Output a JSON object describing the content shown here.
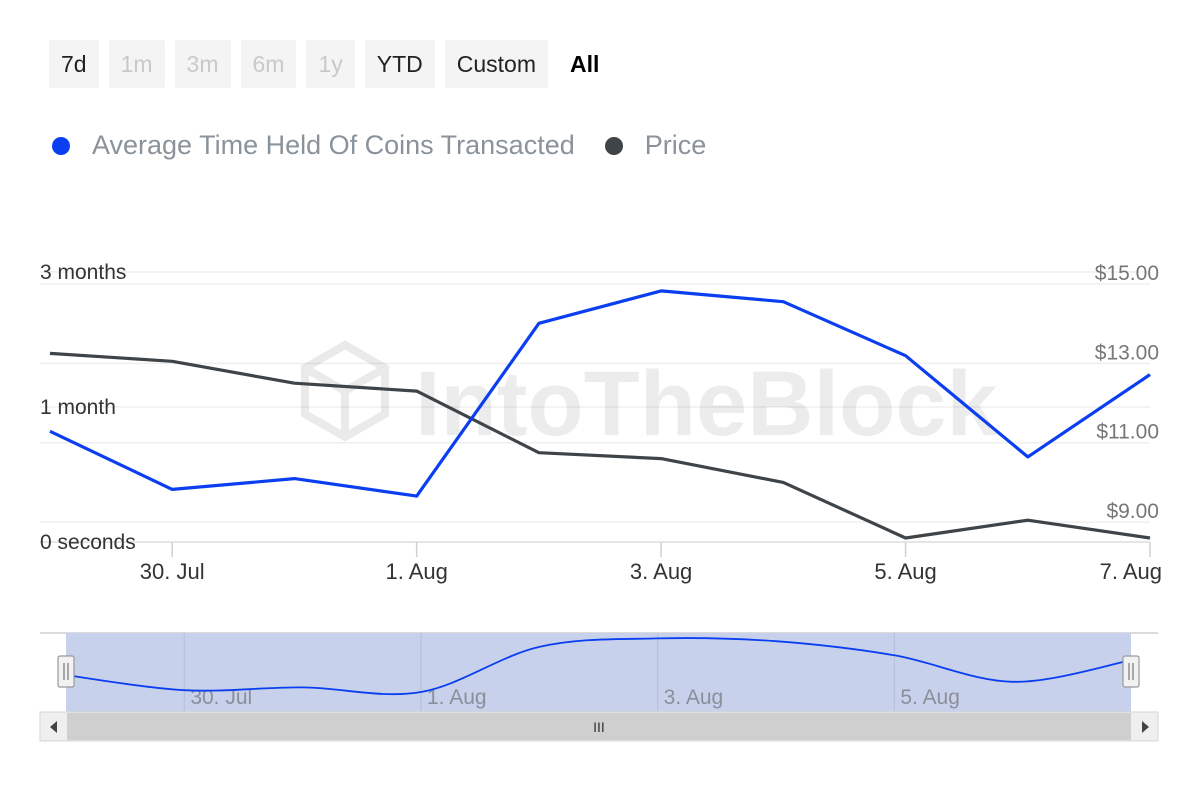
{
  "range_selector": {
    "buttons": [
      {
        "label": "7d",
        "state": "normal"
      },
      {
        "label": "1m",
        "state": "disabled"
      },
      {
        "label": "3m",
        "state": "disabled"
      },
      {
        "label": "6m",
        "state": "disabled"
      },
      {
        "label": "1y",
        "state": "disabled"
      },
      {
        "label": "YTD",
        "state": "normal"
      },
      {
        "label": "Custom",
        "state": "normal"
      },
      {
        "label": "All",
        "state": "active"
      }
    ]
  },
  "watermark": "IntoTheBlock",
  "colors": {
    "series_time_held": "#0a3ef0",
    "series_price": "#3f4448",
    "navigator_fill": "#c8d1ec",
    "grid": "#efefef"
  },
  "chart_data": {
    "type": "line",
    "x": [
      "2024-07-29",
      "2024-07-30",
      "2024-07-31",
      "2024-08-01",
      "2024-08-02",
      "2024-08-03",
      "2024-08-04",
      "2024-08-05",
      "2024-08-06",
      "2024-08-07"
    ],
    "series": [
      {
        "name": "Average Time Held Of Coins Transacted",
        "axis": "left",
        "color": "#0a3ef0",
        "values": [
          0.82,
          0.39,
          0.47,
          0.34,
          1.62,
          1.86,
          1.78,
          1.38,
          0.63,
          1.24
        ]
      },
      {
        "name": "Price",
        "axis": "right",
        "color": "#3f4448",
        "values": [
          13.25,
          13.05,
          12.5,
          12.3,
          10.75,
          10.6,
          10.0,
          8.6,
          9.05,
          8.6
        ]
      }
    ],
    "x_ticks": [
      "30. Jul",
      "1. Aug",
      "3. Aug",
      "5. Aug",
      "7. Aug"
    ],
    "x_tick_dates": [
      "2024-07-30",
      "2024-08-01",
      "2024-08-03",
      "2024-08-05",
      "2024-08-07"
    ],
    "left_axis": {
      "ticks": [
        {
          "label": "0 seconds",
          "value": 0
        },
        {
          "label": "1 month",
          "value": 1
        },
        {
          "label": "3 months",
          "value": 2
        }
      ],
      "ylim": [
        0,
        2.0
      ]
    },
    "right_axis": {
      "ticks": [
        {
          "label": "$9.00",
          "value": 9
        },
        {
          "label": "$11.00",
          "value": 11
        },
        {
          "label": "$13.00",
          "value": 13
        },
        {
          "label": "$15.00",
          "value": 15
        }
      ],
      "ylim": [
        8.5,
        15.3
      ]
    },
    "grid": true,
    "legend_position": "top-left",
    "navigator": {
      "x_ticks": [
        "30. Jul",
        "1. Aug",
        "3. Aug",
        "5. Aug"
      ],
      "scroll_thumb_label": "III"
    }
  }
}
